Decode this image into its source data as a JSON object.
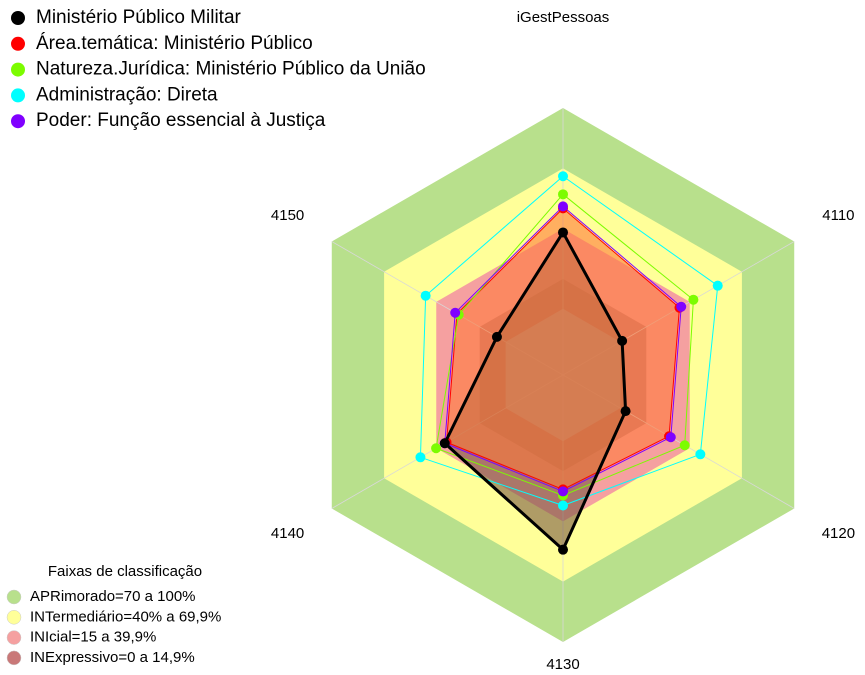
{
  "chart_data": {
    "type": "radar",
    "categories": [
      "iGestPessoas",
      "4110",
      "4120",
      "4130",
      "4140",
      "4150"
    ],
    "ylim": [
      -33,
      100
    ],
    "series": [
      {
        "name": "Ministério Público Militar",
        "color": "#000000",
        "fill": "#7a5a44",
        "values": [
          38,
          1,
          3,
          54,
          35,
          5
        ]
      },
      {
        "name": "Área.temática: Ministério Público",
        "color": "#ff0000",
        "fill": "#ff7a3a",
        "values": [
          50,
          34,
          28,
          24,
          34,
          28
        ]
      },
      {
        "name": "Natureza.Jurídica: Ministério Público da União",
        "color": "#7cfc00",
        "values": [
          57,
          42,
          37,
          27,
          40,
          27
        ]
      },
      {
        "name": "Administração: Direta",
        "color": "#00ffff",
        "values": [
          66,
          56,
          46,
          32,
          49,
          46
        ]
      },
      {
        "name": "Poder: Função essencial à Justiça",
        "color": "#8000ff",
        "values": [
          51,
          35,
          29,
          25,
          35,
          29
        ]
      }
    ],
    "band_legend_title": "Faixas de classificação",
    "bands": [
      {
        "label": "APRimorado=70 a 100%",
        "color": "#b8e08c",
        "from": 70,
        "to": 100
      },
      {
        "label": "INTermediário=40% a 69,9%",
        "color": "#ffff99",
        "from": 40,
        "to": 69.9
      },
      {
        "label": "INIcial=15 a 39,9%",
        "color": "#f5a0a0",
        "from": 15,
        "to": 39.9
      },
      {
        "label": "INExpressivo=0 a 14,9%",
        "color": "#c97878",
        "from": 0,
        "to": 14.9
      }
    ]
  }
}
